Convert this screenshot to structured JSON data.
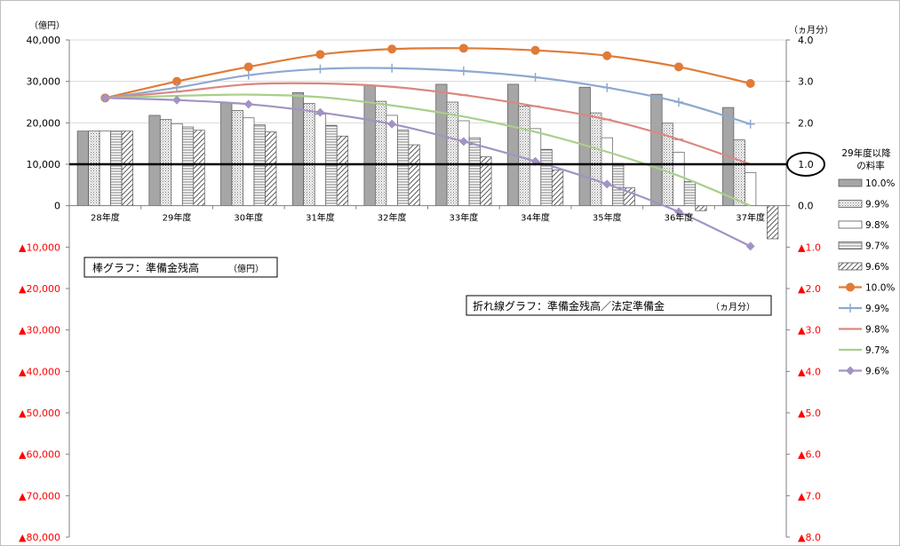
{
  "chart_data": {
    "type": "bar+line",
    "categories": [
      "28年度",
      "29年度",
      "30年度",
      "31年度",
      "32年度",
      "33年度",
      "34年度",
      "35年度",
      "36年度",
      "37年度"
    ],
    "left_axis": {
      "unit": "（億円）",
      "ylim": [
        -80000,
        40000
      ],
      "ticks": [
        {
          "v": 40000,
          "label": "40,000",
          "neg": false
        },
        {
          "v": 30000,
          "label": "30,000",
          "neg": false
        },
        {
          "v": 20000,
          "label": "20,000",
          "neg": false
        },
        {
          "v": 10000,
          "label": "10,000",
          "neg": false
        },
        {
          "v": 0,
          "label": "0",
          "neg": false
        },
        {
          "v": -10000,
          "label": "▲10,000",
          "neg": true
        },
        {
          "v": -20000,
          "label": "▲20,000",
          "neg": true
        },
        {
          "v": -30000,
          "label": "▲30,000",
          "neg": true
        },
        {
          "v": -40000,
          "label": "▲40,000",
          "neg": true
        },
        {
          "v": -50000,
          "label": "▲50,000",
          "neg": true
        },
        {
          "v": -60000,
          "label": "▲60,000",
          "neg": true
        },
        {
          "v": -70000,
          "label": "▲70,000",
          "neg": true
        },
        {
          "v": -80000,
          "label": "▲80,000",
          "neg": true
        }
      ]
    },
    "right_axis": {
      "unit": "（ヵ月分）",
      "ylim": [
        -8.0,
        4.0
      ],
      "ticks": [
        {
          "v": 4,
          "label": "4.0",
          "neg": false
        },
        {
          "v": 3,
          "label": "3.0",
          "neg": false
        },
        {
          "v": 2,
          "label": "2.0",
          "neg": false
        },
        {
          "v": 0,
          "label": "0.0",
          "neg": false
        },
        {
          "v": -1,
          "label": "▲1.0",
          "neg": true
        },
        {
          "v": -2,
          "label": "▲2.0",
          "neg": true
        },
        {
          "v": -3,
          "label": "▲3.0",
          "neg": true
        },
        {
          "v": -4,
          "label": "▲4.0",
          "neg": true
        },
        {
          "v": -5,
          "label": "▲5.0",
          "neg": true
        },
        {
          "v": -6,
          "label": "▲6.0",
          "neg": true
        },
        {
          "v": -7,
          "label": "▲7.0",
          "neg": true
        },
        {
          "v": -8,
          "label": "▲8.0",
          "neg": true
        }
      ],
      "highlight_tick": {
        "v": 1,
        "label": "1.0"
      }
    },
    "bar_series": [
      {
        "name": "10.0%",
        "pattern": "solid-gray",
        "values": [
          18000,
          21800,
          24800,
          27300,
          29000,
          29300,
          29300,
          28600,
          26900,
          23700
        ]
      },
      {
        "name": "9.9%",
        "pattern": "dots",
        "values": [
          18000,
          20800,
          23000,
          24700,
          25200,
          25000,
          24000,
          22400,
          19900,
          15900
        ]
      },
      {
        "name": "9.8%",
        "pattern": "white",
        "values": [
          18000,
          19800,
          21200,
          22100,
          21800,
          20500,
          18600,
          16400,
          12900,
          8000
        ]
      },
      {
        "name": "9.7%",
        "pattern": "hlines",
        "values": [
          18000,
          19000,
          19500,
          19400,
          18300,
          16400,
          13600,
          10200,
          5800,
          0
        ]
      },
      {
        "name": "9.6%",
        "pattern": "diag",
        "values": [
          18000,
          18200,
          17800,
          16800,
          14700,
          11800,
          8600,
          4300,
          -1200,
          -8000
        ]
      }
    ],
    "line_series": [
      {
        "name": "10.0%",
        "color": "#e07b39",
        "marker": "circle",
        "values": [
          2.6,
          3.0,
          3.35,
          3.65,
          3.78,
          3.8,
          3.75,
          3.62,
          3.35,
          2.95
        ]
      },
      {
        "name": "9.9%",
        "color": "#8fa8cf",
        "marker": "plus",
        "values": [
          2.6,
          2.85,
          3.15,
          3.3,
          3.32,
          3.25,
          3.1,
          2.85,
          2.5,
          1.97
        ]
      },
      {
        "name": "9.8%",
        "color": "#d98880",
        "marker": "dash",
        "values": [
          2.6,
          2.75,
          2.93,
          2.95,
          2.87,
          2.67,
          2.4,
          2.08,
          1.6,
          1.0
        ]
      },
      {
        "name": "9.7%",
        "color": "#a9cf8a",
        "marker": "none",
        "values": [
          2.6,
          2.65,
          2.68,
          2.62,
          2.42,
          2.15,
          1.78,
          1.3,
          0.72,
          0.0
        ]
      },
      {
        "name": "9.6%",
        "color": "#a293c4",
        "marker": "diamond",
        "values": [
          2.6,
          2.55,
          2.45,
          2.25,
          1.97,
          1.55,
          1.07,
          0.52,
          -0.15,
          -0.98
        ]
      }
    ],
    "reference_line": {
      "axis": "left",
      "value": 10000,
      "color": "#000000"
    },
    "legend": {
      "title_line1": "29年度以降",
      "title_line2": "の料率",
      "placement": "right"
    },
    "annotations": [
      {
        "title": "棒グラフ：準備金残高",
        "unit": "（億円）"
      },
      {
        "title": "折れ線グラフ：準備金残高／法定準備金",
        "unit": "（ヵ月分）"
      }
    ]
  }
}
